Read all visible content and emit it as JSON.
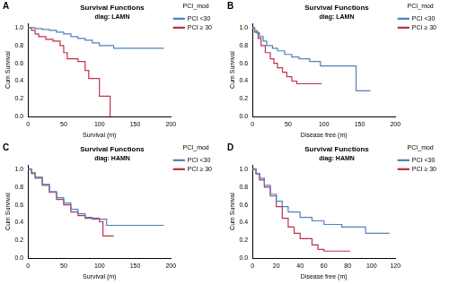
{
  "chart_data": [
    {
      "type": "line",
      "panel": "A",
      "title": "Survival Functions",
      "subtitle": "diag: LAMN",
      "x_label": "Survival (m)",
      "y_label": "Cum Survival",
      "legend": "right",
      "legend_title": "PCI_mod",
      "grid": false,
      "xlim": [
        0,
        200
      ],
      "xticks": [
        0,
        50,
        100,
        150,
        200
      ],
      "ylim": [
        0,
        1.05
      ],
      "yticks": [
        {
          "value": 0,
          "label": "0.0"
        },
        {
          "value": 0.2,
          "label": "0.2"
        },
        {
          "value": 0.4,
          "label": "0.4"
        },
        {
          "value": 0.6,
          "label": "0.6"
        },
        {
          "value": 0.8,
          "label": "0.8"
        },
        {
          "value": 1,
          "label": "1.0"
        }
      ],
      "series": [
        {
          "name": "PCI <30",
          "color": "#4f81bd",
          "line_style": "step",
          "x": [
            0,
            10,
            20,
            30,
            40,
            50,
            60,
            70,
            80,
            90,
            100,
            120,
            190
          ],
          "values": [
            1,
            0.99,
            0.98,
            0.97,
            0.95,
            0.93,
            0.9,
            0.88,
            0.86,
            0.83,
            0.8,
            0.77,
            0.77
          ]
        },
        {
          "name": "PCI ≥ 30",
          "color": "#c0304a",
          "line_style": "step",
          "x": [
            0,
            5,
            10,
            15,
            25,
            35,
            45,
            50,
            55,
            70,
            80,
            85,
            95,
            100,
            112,
            115
          ],
          "values": [
            1,
            0.97,
            0.93,
            0.9,
            0.87,
            0.85,
            0.8,
            0.72,
            0.65,
            0.62,
            0.52,
            0.43,
            0.43,
            0.23,
            0.23,
            0
          ]
        }
      ]
    },
    {
      "type": "line",
      "panel": "B",
      "title": "Survival Functions",
      "subtitle": "diag: LAMN",
      "x_label": "Disease free (m)",
      "y_label": "Cum Survival",
      "legend": "right",
      "legend_title": "PCI_mod",
      "grid": false,
      "xlim": [
        0,
        200
      ],
      "xticks": [
        0,
        50,
        100,
        150,
        200
      ],
      "ylim": [
        0,
        1.05
      ],
      "yticks": [
        {
          "value": 0,
          "label": "0.0"
        },
        {
          "value": 0.2,
          "label": "0.2"
        },
        {
          "value": 0.4,
          "label": "0.4"
        },
        {
          "value": 0.6,
          "label": "0.6"
        },
        {
          "value": 0.8,
          "label": "0.8"
        },
        {
          "value": 1,
          "label": "1.0"
        }
      ],
      "series": [
        {
          "name": "PCI <30",
          "color": "#4f81bd",
          "line_style": "step",
          "x": [
            0,
            3,
            6,
            10,
            15,
            20,
            28,
            35,
            45,
            55,
            65,
            80,
            95,
            140,
            145,
            165
          ],
          "values": [
            1,
            0.97,
            0.94,
            0.9,
            0.85,
            0.8,
            0.77,
            0.74,
            0.7,
            0.67,
            0.65,
            0.62,
            0.57,
            0.57,
            0.29,
            0.29
          ]
        },
        {
          "name": "PCI ≥ 30",
          "color": "#c0304a",
          "line_style": "step",
          "x": [
            0,
            3,
            8,
            12,
            18,
            25,
            30,
            35,
            42,
            48,
            55,
            62,
            97
          ],
          "values": [
            1,
            0.95,
            0.88,
            0.8,
            0.72,
            0.65,
            0.6,
            0.55,
            0.5,
            0.45,
            0.4,
            0.37,
            0.37
          ]
        }
      ]
    },
    {
      "type": "line",
      "panel": "C",
      "title": "Survival Functions",
      "subtitle": "diag: HAMN",
      "x_label": "Survival (m)",
      "y_label": "Cum Survival",
      "legend": "right",
      "legend_title": "PCI_mod",
      "grid": false,
      "xlim": [
        0,
        200
      ],
      "xticks": [
        0,
        50,
        100,
        150,
        200
      ],
      "ylim": [
        0,
        1.05
      ],
      "yticks": [
        {
          "value": 0,
          "label": "0.0"
        },
        {
          "value": 0.2,
          "label": "0.2"
        },
        {
          "value": 0.4,
          "label": "0.4"
        },
        {
          "value": 0.6,
          "label": "0.6"
        },
        {
          "value": 0.8,
          "label": "0.8"
        },
        {
          "value": 1,
          "label": "1.0"
        }
      ],
      "series": [
        {
          "name": "PCI <30",
          "color": "#4f81bd",
          "line_style": "step",
          "x": [
            0,
            5,
            10,
            20,
            30,
            40,
            50,
            60,
            70,
            80,
            90,
            110,
            190
          ],
          "values": [
            1,
            0.95,
            0.9,
            0.82,
            0.75,
            0.68,
            0.62,
            0.55,
            0.5,
            0.46,
            0.44,
            0.37,
            0.37
          ]
        },
        {
          "name": "PCI ≥ 30",
          "color": "#c0304a",
          "line_style": "step",
          "x": [
            0,
            5,
            10,
            20,
            30,
            40,
            50,
            60,
            70,
            80,
            100,
            105,
            120
          ],
          "values": [
            1,
            0.96,
            0.91,
            0.83,
            0.74,
            0.66,
            0.6,
            0.52,
            0.48,
            0.45,
            0.41,
            0.25,
            0.25
          ]
        }
      ]
    },
    {
      "type": "line",
      "panel": "D",
      "title": "Survival Functions",
      "subtitle": "diag: HAMN",
      "x_label": "Disease free (m)",
      "y_label": "Cum Survival",
      "legend": "right",
      "legend_title": "PCI_mod",
      "grid": false,
      "xlim": [
        0,
        120
      ],
      "xticks": [
        0,
        20,
        40,
        60,
        80,
        100,
        120
      ],
      "ylim": [
        0,
        1.05
      ],
      "yticks": [
        {
          "value": 0,
          "label": "0.0"
        },
        {
          "value": 0.2,
          "label": "0.2"
        },
        {
          "value": 0.4,
          "label": "0.4"
        },
        {
          "value": 0.6,
          "label": "0.6"
        },
        {
          "value": 0.8,
          "label": "0.8"
        },
        {
          "value": 1,
          "label": "1.0"
        }
      ],
      "series": [
        {
          "name": "PCI <30",
          "color": "#4f81bd",
          "line_style": "step",
          "x": [
            0,
            3,
            6,
            10,
            15,
            20,
            25,
            30,
            40,
            50,
            60,
            75,
            95,
            115
          ],
          "values": [
            1,
            0.95,
            0.9,
            0.82,
            0.72,
            0.64,
            0.58,
            0.52,
            0.46,
            0.42,
            0.38,
            0.35,
            0.28,
            0.28
          ]
        },
        {
          "name": "PCI ≥ 30",
          "color": "#c0304a",
          "line_style": "step",
          "x": [
            0,
            3,
            6,
            10,
            15,
            20,
            25,
            30,
            35,
            40,
            50,
            55,
            60,
            82
          ],
          "values": [
            1,
            0.95,
            0.88,
            0.8,
            0.7,
            0.58,
            0.45,
            0.35,
            0.28,
            0.22,
            0.15,
            0.1,
            0.08,
            0.08
          ]
        }
      ]
    }
  ]
}
